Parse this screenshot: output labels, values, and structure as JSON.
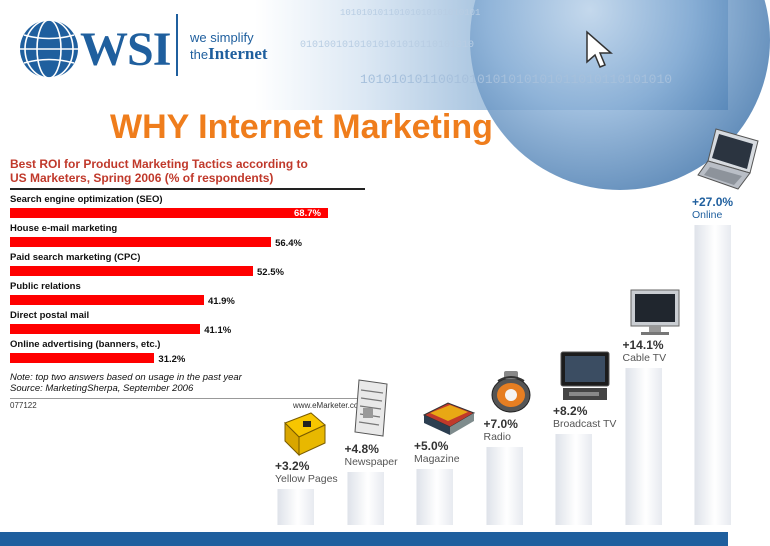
{
  "header": {
    "logo_text": "WSI",
    "tagline_line1": "we simplify",
    "tagline_line2_prefix": "the",
    "tagline_line2_bold": "Internet",
    "binary_row1": "10101010110101010101010101",
    "binary_row2": "01010010101010101010110101010",
    "binary_row3": "1010101011001010101010101011010110101010"
  },
  "page_title": "WHY Internet Marketing",
  "colors": {
    "title": "#ef7d1c",
    "bar": "#ff0000",
    "brand": "#1f5f9e"
  },
  "chart_data": [
    {
      "type": "bar",
      "orientation": "horizontal",
      "title_line1": "Best ROI for Product Marketing Tactics according to",
      "title_line2": "US Marketers, Spring 2006 (% of respondents)",
      "categories": [
        "Search engine optimization (SEO)",
        "House e-mail marketing",
        "Paid search marketing (CPC)",
        "Public relations",
        "Direct postal mail",
        "Online advertising (banners, etc.)"
      ],
      "values": [
        68.7,
        56.4,
        52.5,
        41.9,
        41.1,
        31.2
      ],
      "value_labels": [
        "68.7%",
        "56.4%",
        "52.5%",
        "41.9%",
        "41.1%",
        "31.2%"
      ],
      "note_line1": "Note: top two answers based on usage in the past year",
      "note_line2": "Source: MarketingSherpa, September 2006",
      "code": "077122",
      "brand": "www.eMarketer.com"
    },
    {
      "type": "bar",
      "orientation": "vertical",
      "categories": [
        "Yellow Pages",
        "Newspaper",
        "Magazine",
        "Radio",
        "Broadcast TV",
        "Cable TV",
        "Online"
      ],
      "values": [
        3.2,
        4.8,
        5.0,
        7.0,
        8.2,
        14.1,
        27.0
      ],
      "value_labels": [
        "+3.2%",
        "+4.8%",
        "+5.0%",
        "+7.0%",
        "+8.2%",
        "+14.1%",
        "+27.0%"
      ],
      "icons": [
        "yellow-pages-book-icon",
        "newspaper-icon",
        "magazine-stack-icon",
        "radio-icon",
        "broadcast-tv-icon",
        "cable-tv-monitor-icon",
        "laptop-icon"
      ]
    }
  ]
}
